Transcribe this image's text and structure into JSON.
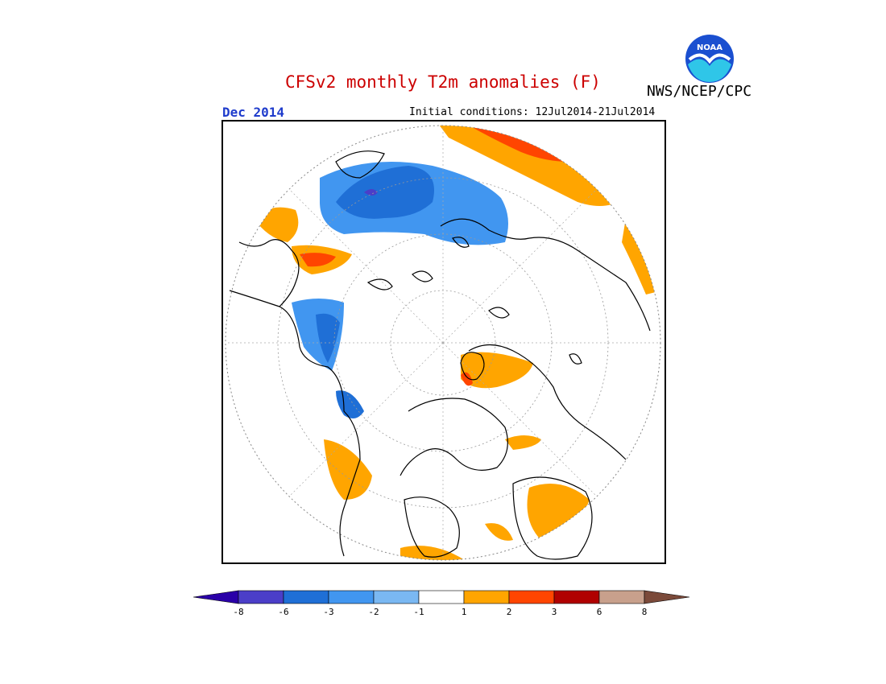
{
  "header": {
    "title": "CFSv2 monthly T2m anomalies (F)",
    "organization": "NWS/NCEP/CPC",
    "valid_month": "Dec 2014",
    "initial_conditions": "Initial conditions: 12Jul2014-21Jul2014",
    "logo_text": "NOAA"
  },
  "colors": {
    "title": "#cc0000",
    "valid_month": "#1f3ccc",
    "land_outline": "#000000",
    "background": "#ffffff"
  },
  "legend": {
    "units": "F",
    "bins": [
      {
        "color": "#2a00a8",
        "range": "< -8"
      },
      {
        "color": "#4b3ec8",
        "range": "-8 to -6"
      },
      {
        "color": "#1f6fd6",
        "range": "-6 to -3"
      },
      {
        "color": "#4196f0",
        "range": "-3 to -2"
      },
      {
        "color": "#7ab8f2",
        "range": "-2 to -1"
      },
      {
        "color": "#ffffff",
        "range": "-1 to 1"
      },
      {
        "color": "#ffa500",
        "range": "1 to 2"
      },
      {
        "color": "#ff4500",
        "range": "2 to 3"
      },
      {
        "color": "#b00000",
        "range": "3 to 6"
      },
      {
        "color": "#c8a08c",
        "range": "6 to 8"
      },
      {
        "color": "#7b4a3a",
        "range": "> 8"
      }
    ],
    "tick_labels": [
      "-8",
      "-6",
      "-3",
      "-2",
      "-1",
      "1",
      "2",
      "3",
      "6",
      "8"
    ]
  },
  "map": {
    "projection": "polar stereographic (North Pole)",
    "regions": [
      {
        "name": "north-pacific-cold",
        "category": "-3 to -2"
      },
      {
        "name": "north-pacific-core",
        "category": "-6 to -3"
      },
      {
        "name": "north-pacific-deep",
        "category": "-8 to -6"
      },
      {
        "name": "north-atlantic-warm",
        "category": "1 to 2"
      },
      {
        "name": "north-atlantic-core",
        "category": "2 to 3"
      },
      {
        "name": "western-us-cold",
        "category": "-3 to -2"
      },
      {
        "name": "south-asia-warm",
        "category": "1 to 2"
      },
      {
        "name": "siberia-warm",
        "category": "1 to 2"
      },
      {
        "name": "europe-warm",
        "category": "1 to 2"
      },
      {
        "name": "africa-warm",
        "category": "1 to 2"
      }
    ]
  }
}
